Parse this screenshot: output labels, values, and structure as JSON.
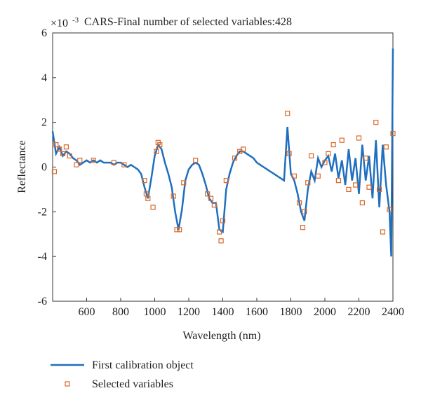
{
  "chart_data": {
    "type": "line_scatter",
    "title": "CARS-Final number of selected variables:428",
    "x_label": "Wavelength (nm)",
    "y_label": "Reflectance",
    "y_scale_label": {
      "base": "×10",
      "exponent": "-3"
    },
    "xlim": [
      400,
      2400
    ],
    "xticks": [
      600,
      800,
      1000,
      1200,
      1400,
      1600,
      1800,
      2000,
      2200,
      2400
    ],
    "ylim": [
      -6,
      6
    ],
    "yticks": [
      -6,
      -4,
      -2,
      0,
      2,
      4,
      6
    ],
    "series": [
      {
        "name": "First calibration object",
        "color": "#1f6fbf",
        "kind": "line",
        "x": [
          400,
          420,
          440,
          460,
          480,
          500,
          520,
          540,
          560,
          580,
          600,
          620,
          640,
          660,
          680,
          700,
          720,
          740,
          760,
          780,
          800,
          820,
          840,
          860,
          880,
          900,
          920,
          940,
          960,
          980,
          1000,
          1020,
          1040,
          1060,
          1080,
          1100,
          1120,
          1140,
          1160,
          1180,
          1200,
          1220,
          1240,
          1260,
          1280,
          1300,
          1320,
          1340,
          1360,
          1380,
          1400,
          1420,
          1440,
          1460,
          1480,
          1500,
          1520,
          1540,
          1560,
          1580,
          1600,
          1620,
          1640,
          1660,
          1680,
          1700,
          1720,
          1740,
          1760,
          1780,
          1800,
          1820,
          1840,
          1860,
          1880,
          1900,
          1920,
          1940,
          1960,
          1980,
          2000,
          2020,
          2040,
          2060,
          2080,
          2100,
          2120,
          2140,
          2160,
          2180,
          2200,
          2220,
          2240,
          2260,
          2280,
          2300,
          2320,
          2340,
          2360,
          2380,
          2390,
          2400
        ],
        "values": [
          1.6,
          0.6,
          0.9,
          0.5,
          0.7,
          0.6,
          0.4,
          0.3,
          0.1,
          0.2,
          0.3,
          0.2,
          0.3,
          0.2,
          0.3,
          0.2,
          0.2,
          0.2,
          0.1,
          0.2,
          0.2,
          0.1,
          0.0,
          0.1,
          0.0,
          -0.1,
          -0.3,
          -0.9,
          -1.4,
          -0.5,
          0.5,
          1.0,
          0.8,
          0.2,
          -0.3,
          -0.9,
          -2.0,
          -2.8,
          -1.9,
          -0.6,
          -0.1,
          0.1,
          0.2,
          0.1,
          -0.3,
          -0.8,
          -1.4,
          -1.6,
          -1.6,
          -2.8,
          -2.9,
          -1.0,
          -0.3,
          0.2,
          0.5,
          0.7,
          0.7,
          0.6,
          0.5,
          0.4,
          0.2,
          0.1,
          0.0,
          -0.1,
          -0.2,
          -0.3,
          -0.4,
          -0.5,
          -0.6,
          1.8,
          -0.3,
          -0.6,
          -1.2,
          -2.0,
          -2.4,
          -1.0,
          -0.2,
          -0.6,
          0.4,
          0.0,
          0.3,
          0.5,
          -0.2,
          0.6,
          -0.5,
          0.3,
          -0.8,
          0.8,
          -0.6,
          0.4,
          -1.2,
          1.0,
          -0.6,
          0.5,
          -1.4,
          1.2,
          -1.8,
          1.0,
          -0.8,
          -2.0,
          -4.0,
          5.3
        ]
      },
      {
        "name": "Selected variables",
        "color": "#d9682b",
        "kind": "scatter",
        "x": [
          410,
          420,
          440,
          460,
          480,
          500,
          540,
          560,
          640,
          760,
          820,
          940,
          950,
          960,
          990,
          1010,
          1020,
          1030,
          1110,
          1130,
          1145,
          1170,
          1240,
          1310,
          1330,
          1350,
          1380,
          1390,
          1400,
          1420,
          1470,
          1500,
          1520,
          1780,
          1790,
          1820,
          1850,
          1870,
          1880,
          1900,
          1920,
          1960,
          2000,
          2020,
          2050,
          2080,
          2100,
          2140,
          2180,
          2200,
          2220,
          2240,
          2260,
          2300,
          2320,
          2340,
          2360,
          2380,
          2400
        ],
        "values": [
          -0.2,
          1.0,
          0.8,
          0.6,
          0.9,
          0.5,
          0.1,
          0.3,
          0.3,
          0.2,
          0.1,
          -0.6,
          -1.2,
          -1.4,
          -1.8,
          0.7,
          1.1,
          1.0,
          -1.3,
          -2.8,
          -2.8,
          -0.7,
          0.3,
          -1.2,
          -1.4,
          -1.7,
          -2.9,
          -3.3,
          -2.4,
          -0.6,
          0.4,
          0.7,
          0.8,
          2.4,
          0.6,
          -0.4,
          -1.6,
          -2.7,
          -2.0,
          -0.7,
          0.5,
          -0.4,
          0.2,
          0.6,
          1.0,
          -0.6,
          1.2,
          -1.0,
          -0.8,
          1.3,
          -1.6,
          0.4,
          -0.9,
          2.0,
          -1.0,
          -2.9,
          0.9,
          -1.9,
          1.5
        ]
      }
    ]
  }
}
